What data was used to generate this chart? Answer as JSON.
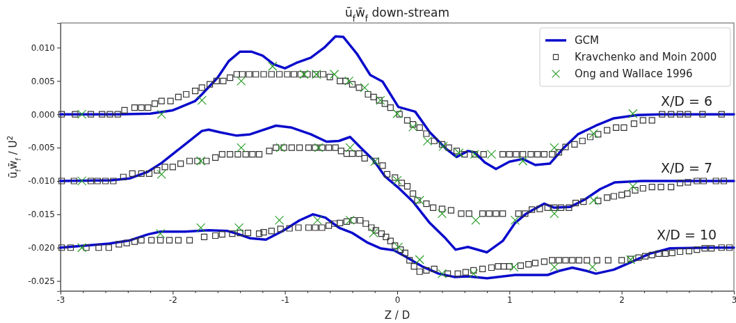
{
  "chart_data": {
    "type": "line",
    "title": "ū$_{f}$w̄$_{f}$ down-stream",
    "xlabel": "Z / D",
    "ylabel": "ū$_{f}$w̄$_{f}$ / U$^{2}$",
    "xlim": [
      -3,
      3
    ],
    "ylim": [
      -0.0265,
      0.0137
    ],
    "xticks": [
      -3,
      {
        "value": -2.8,
        "label": null
      },
      {
        "value": -2.6,
        "label": null
      },
      {
        "value": -2.4,
        "label": null
      },
      {
        "value": -2.2,
        "label": null
      },
      -2,
      {
        "value": -1.8,
        "label": null
      },
      {
        "value": -1.6,
        "label": null
      },
      {
        "value": -1.4,
        "label": null
      },
      {
        "value": -1.2,
        "label": null
      },
      -1,
      {
        "value": -0.8,
        "label": null
      },
      {
        "value": -0.6,
        "label": null
      },
      {
        "value": -0.4,
        "label": null
      },
      {
        "value": -0.2,
        "label": null
      },
      0,
      {
        "value": 0.2,
        "label": null
      },
      {
        "value": 0.4,
        "label": null
      },
      {
        "value": 0.6,
        "label": null
      },
      {
        "value": 0.8,
        "label": null
      },
      1,
      {
        "value": 1.2,
        "label": null
      },
      {
        "value": 1.4,
        "label": null
      },
      {
        "value": 1.6,
        "label": null
      },
      {
        "value": 1.8,
        "label": null
      },
      2,
      {
        "value": 2.2,
        "label": null
      },
      {
        "value": 2.4,
        "label": null
      },
      {
        "value": 2.6,
        "label": null
      },
      {
        "value": 2.8,
        "label": null
      },
      3
    ],
    "yticks": [
      {
        "value": 0.01,
        "label": "0.010"
      },
      {
        "value": 0.005,
        "label": "0.005"
      },
      {
        "value": 0,
        "label": "0.000"
      },
      {
        "value": -0.005,
        "label": "-0.005"
      },
      {
        "value": -0.01,
        "label": "-0.010"
      },
      {
        "value": -0.015,
        "label": "-0.015"
      },
      {
        "value": -0.02,
        "label": "-0.020"
      },
      {
        "value": -0.025,
        "label": "-0.025"
      }
    ],
    "grid": false,
    "legend": "top right",
    "annotations": [
      "X/D = 6",
      "X/D = 7",
      "X/D = 10"
    ],
    "series": [
      {
        "name": "GCM",
        "marker": "none",
        "color": "#0a0acc",
        "x": [
          -3,
          -2.5,
          -2.2,
          -2.0,
          -1.8,
          -1.74,
          -1.6,
          -1.5,
          -1.4,
          -1.3,
          -1.2,
          -1.1,
          -1.0,
          -0.9,
          -0.77,
          -0.65,
          -0.55,
          -0.48,
          -0.36,
          -0.24,
          -0.13,
          0.01,
          0.16,
          0.29,
          0.43,
          0.53,
          0.63,
          0.69,
          0.78,
          0.88,
          1.0,
          1.12,
          1.23,
          1.36,
          1.48,
          1.61,
          1.77,
          1.93,
          2.14,
          2.35,
          3
        ],
        "values": [
          0,
          0,
          0.0001,
          0.0006,
          0.002,
          0.003,
          0.0055,
          0.008,
          0.0094,
          0.0094,
          0.0088,
          0.0075,
          0.0069,
          0.0077,
          0.0085,
          0.01,
          0.0117,
          0.0116,
          0.0091,
          0.0059,
          0.0049,
          0.0011,
          0.0004,
          -0.0027,
          -0.0051,
          -0.0064,
          -0.0055,
          -0.0057,
          -0.0072,
          -0.0082,
          -0.0071,
          -0.0067,
          -0.0076,
          -0.0074,
          -0.0051,
          -0.003,
          -0.0017,
          -0.0006,
          -0.0001,
          0,
          0
        ]
      },
      {
        "marker": "none",
        "color": "#0a0acc",
        "x": [
          -3,
          -2.55,
          -2.38,
          -2.22,
          -2.1,
          -1.89,
          -1.74,
          -1.68,
          -1.58,
          -1.43,
          -1.31,
          -1.08,
          -0.94,
          -0.77,
          -0.63,
          -0.52,
          -0.42,
          -0.32,
          -0.21,
          -0.11,
          0.01,
          0.14,
          0.29,
          0.43,
          0.52,
          0.63,
          0.8,
          0.94,
          1.05,
          1.15,
          1.31,
          1.4,
          1.54,
          1.67,
          1.81,
          1.94,
          2.18,
          3
        ],
        "values": [
          -0.01,
          -0.0099,
          -0.0096,
          -0.0086,
          -0.0073,
          -0.0045,
          -0.0025,
          -0.0023,
          -0.0027,
          -0.0032,
          -0.003,
          -0.0017,
          -0.002,
          -0.003,
          -0.0041,
          -0.004,
          -0.0034,
          -0.0051,
          -0.0069,
          -0.0093,
          -0.011,
          -0.0131,
          -0.0163,
          -0.0186,
          -0.0203,
          -0.0199,
          -0.0207,
          -0.019,
          -0.0163,
          -0.0149,
          -0.0134,
          -0.014,
          -0.0139,
          -0.0128,
          -0.0112,
          -0.0102,
          -0.01,
          -0.01
        ]
      },
      {
        "marker": "none",
        "color": "#0a0acc",
        "x": [
          -3,
          -2.57,
          -2.38,
          -2.22,
          -2.11,
          -1.89,
          -1.68,
          -1.51,
          -1.41,
          -1.31,
          -1.17,
          -1.02,
          -0.87,
          -0.75,
          -0.64,
          -0.52,
          -0.4,
          -0.27,
          -0.15,
          -0.03,
          0.07,
          0.22,
          0.37,
          0.51,
          0.63,
          0.8,
          1.05,
          1.34,
          1.44,
          1.56,
          1.69,
          1.77,
          1.93,
          2.08,
          2.25,
          2.43,
          2.8,
          3
        ],
        "values": [
          -0.02,
          -0.0194,
          -0.0189,
          -0.018,
          -0.0176,
          -0.0176,
          -0.0174,
          -0.0175,
          -0.018,
          -0.0186,
          -0.0188,
          -0.0175,
          -0.0159,
          -0.015,
          -0.0155,
          -0.017,
          -0.0178,
          -0.0192,
          -0.0201,
          -0.0204,
          -0.0213,
          -0.0228,
          -0.0239,
          -0.0244,
          -0.0243,
          -0.0246,
          -0.0241,
          -0.0241,
          -0.0235,
          -0.023,
          -0.0235,
          -0.0239,
          -0.0233,
          -0.0222,
          -0.0209,
          -0.0201,
          -0.02,
          -0.02
        ]
      },
      {
        "name": "Kravchenko and Moin 2000",
        "type": "scatter",
        "marker": "square",
        "color": "#333333",
        "x": [
          -2.99,
          -2.87,
          -2.73,
          -2.63,
          -2.56,
          -2.49,
          -2.43,
          -2.34,
          -2.28,
          -2.22,
          -2.16,
          -2.1,
          -2.02,
          -1.95,
          -1.88,
          -1.8,
          -1.74,
          -1.67,
          -1.61,
          -1.55,
          -1.49,
          -1.43,
          -1.38,
          -1.32,
          -1.26,
          -1.19,
          -1.12,
          -1.05,
          -0.98,
          -0.92,
          -0.86,
          -0.8,
          -0.73,
          -0.66,
          -0.6,
          -0.51,
          -0.46,
          -0.4,
          -0.34,
          -0.26,
          -0.21,
          -0.16,
          -0.11,
          -0.06,
          0.02,
          0.09,
          0.14,
          0.2,
          0.26,
          0.33,
          0.4,
          0.46,
          0.53,
          0.6,
          0.69,
          0.77,
          0.94,
          1.0,
          1.06,
          1.12,
          1.19,
          1.25,
          1.31,
          1.38,
          1.44,
          1.5,
          1.58,
          1.65,
          1.72,
          1.79,
          1.87,
          1.95,
          2.02,
          2.11,
          2.19,
          2.27,
          2.36,
          2.44,
          2.52,
          2.59,
          2.72,
          2.89
        ],
        "values": [
          0,
          0,
          0,
          0,
          0,
          0,
          0.0006,
          0.001,
          0.001,
          0.001,
          0.0016,
          0.002,
          0.002,
          0.0026,
          0.003,
          0.0035,
          0.004,
          0.0045,
          0.005,
          0.005,
          0.0055,
          0.006,
          0.006,
          0.006,
          0.006,
          0.006,
          0.006,
          0.006,
          0.006,
          0.006,
          0.006,
          0.006,
          0.006,
          0.006,
          0.0056,
          0.005,
          0.005,
          0.0045,
          0.004,
          0.003,
          0.0026,
          0.0021,
          0.0016,
          0.001,
          0,
          -0.0009,
          -0.0015,
          -0.002,
          -0.0029,
          -0.004,
          -0.0045,
          -0.005,
          -0.0055,
          -0.006,
          -0.006,
          -0.006,
          -0.006,
          -0.006,
          -0.006,
          -0.006,
          -0.006,
          -0.006,
          -0.006,
          -0.006,
          -0.0057,
          -0.0049,
          -0.0045,
          -0.004,
          -0.0034,
          -0.003,
          -0.0024,
          -0.002,
          -0.002,
          -0.0014,
          -0.0009,
          -0.0009,
          0,
          0,
          0,
          0,
          0,
          0
        ]
      },
      {
        "type": "scatter",
        "marker": "square",
        "color": "#333333",
        "x": [
          -2.99,
          -2.88,
          -2.73,
          -2.67,
          -2.6,
          -2.53,
          -2.44,
          -2.36,
          -2.28,
          -2.21,
          -2.14,
          -2.07,
          -2.0,
          -1.93,
          -1.85,
          -1.78,
          -1.7,
          -1.62,
          -1.56,
          -1.49,
          -1.42,
          -1.35,
          -1.29,
          -1.23,
          -1.14,
          -1.08,
          -1.01,
          -0.94,
          -0.87,
          -0.79,
          -0.73,
          -0.67,
          -0.61,
          -0.55,
          -0.5,
          -0.45,
          -0.4,
          -0.34,
          -0.29,
          -0.19,
          -0.13,
          -0.09,
          -0.02,
          0.04,
          0.09,
          0.14,
          0.18,
          0.26,
          0.32,
          0.4,
          0.48,
          0.57,
          0.64,
          0.76,
          0.82,
          0.88,
          0.94,
          1.08,
          1.14,
          1.2,
          1.27,
          1.34,
          1.4,
          1.46,
          1.53,
          1.59,
          1.66,
          1.79,
          1.87,
          1.93,
          2.0,
          2.05,
          2.12,
          2.19,
          2.27,
          2.35,
          2.44,
          2.52,
          2.59,
          2.67,
          2.73,
          2.84,
          2.91
        ],
        "values": [
          -0.01,
          -0.01,
          -0.01,
          -0.01,
          -0.01,
          -0.01,
          -0.0094,
          -0.0089,
          -0.0089,
          -0.0089,
          -0.0084,
          -0.0079,
          -0.0079,
          -0.0074,
          -0.007,
          -0.007,
          -0.007,
          -0.0065,
          -0.006,
          -0.006,
          -0.006,
          -0.006,
          -0.006,
          -0.006,
          -0.0055,
          -0.005,
          -0.005,
          -0.005,
          -0.005,
          -0.005,
          -0.005,
          -0.005,
          -0.005,
          -0.005,
          -0.0055,
          -0.0059,
          -0.0059,
          -0.0059,
          -0.0066,
          -0.007,
          -0.0077,
          -0.009,
          -0.0095,
          -0.0103,
          -0.0108,
          -0.0119,
          -0.0129,
          -0.0134,
          -0.014,
          -0.0142,
          -0.0144,
          -0.0149,
          -0.0149,
          -0.0149,
          -0.0149,
          -0.0149,
          -0.0149,
          -0.0149,
          -0.0149,
          -0.0143,
          -0.0142,
          -0.014,
          -0.014,
          -0.014,
          -0.014,
          -0.0133,
          -0.0131,
          -0.013,
          -0.0125,
          -0.0123,
          -0.0121,
          -0.0119,
          -0.0114,
          -0.0111,
          -0.0109,
          -0.0109,
          -0.0109,
          -0.0103,
          -0.0102,
          -0.01,
          -0.01,
          -0.01,
          -0.01
        ]
      },
      {
        "type": "scatter",
        "marker": "square",
        "color": "#333333",
        "x": [
          -2.99,
          -2.91,
          -2.77,
          -2.66,
          -2.57,
          -2.48,
          -2.41,
          -2.34,
          -2.28,
          -2.19,
          -2.11,
          -2.03,
          -1.95,
          -1.85,
          -1.72,
          -1.62,
          -1.56,
          -1.47,
          -1.4,
          -1.33,
          -1.23,
          -1.19,
          -1.12,
          -1.04,
          -0.96,
          -0.88,
          -0.79,
          -0.73,
          -0.67,
          -0.61,
          -0.56,
          -0.51,
          -0.45,
          -0.39,
          -0.33,
          -0.28,
          -0.23,
          -0.19,
          -0.14,
          -0.1,
          -0.06,
          -0.02,
          0.03,
          0.07,
          0.11,
          0.15,
          0.2,
          0.26,
          0.33,
          0.45,
          0.54,
          0.61,
          0.68,
          0.76,
          0.84,
          0.9,
          0.95,
          1.0,
          1.1,
          1.17,
          1.23,
          1.31,
          1.38,
          1.44,
          1.5,
          1.56,
          1.62,
          1.69,
          1.78,
          1.88,
          2.0,
          2.08,
          2.15,
          2.21,
          2.27,
          2.33,
          2.39,
          2.45,
          2.52,
          2.6,
          2.67,
          2.74,
          2.8,
          2.89,
          2.96
        ],
        "values": [
          -0.02,
          -0.02,
          -0.02,
          -0.02,
          -0.02,
          -0.0195,
          -0.0193,
          -0.0191,
          -0.0189,
          -0.0189,
          -0.0189,
          -0.0189,
          -0.0189,
          -0.0189,
          -0.0184,
          -0.0182,
          -0.018,
          -0.0179,
          -0.0178,
          -0.0178,
          -0.0179,
          -0.0177,
          -0.0175,
          -0.0172,
          -0.0171,
          -0.017,
          -0.017,
          -0.017,
          -0.017,
          -0.0167,
          -0.0164,
          -0.0163,
          -0.0161,
          -0.0159,
          -0.0159,
          -0.0164,
          -0.017,
          -0.0174,
          -0.0179,
          -0.0184,
          -0.019,
          -0.0197,
          -0.0203,
          -0.0208,
          -0.0219,
          -0.0228,
          -0.0236,
          -0.0234,
          -0.0232,
          -0.0239,
          -0.0239,
          -0.0237,
          -0.0234,
          -0.0232,
          -0.023,
          -0.0228,
          -0.0228,
          -0.0228,
          -0.0227,
          -0.0225,
          -0.0223,
          -0.0221,
          -0.0219,
          -0.0219,
          -0.0219,
          -0.0219,
          -0.0219,
          -0.0219,
          -0.0219,
          -0.0219,
          -0.0219,
          -0.0217,
          -0.0215,
          -0.0213,
          -0.0211,
          -0.0209,
          -0.0209,
          -0.0208,
          -0.0206,
          -0.0205,
          -0.0203,
          -0.0201,
          -0.0201,
          -0.02,
          -0.02
        ]
      },
      {
        "name": "Ong and Wallace 1996",
        "type": "scatter",
        "marker": "cross",
        "color": "#1f9a1f",
        "x": [
          -2.81,
          -2.1,
          -1.74,
          -1.39,
          -1.11,
          -0.83,
          -0.72,
          -0.56,
          -0.43,
          -0.29,
          -0.15,
          0.0,
          0.14,
          0.27,
          0.41,
          0.55,
          0.69,
          0.84,
          1.12,
          1.4,
          1.75,
          2.1
        ],
        "values": [
          0,
          0,
          0.0021,
          0.005,
          0.0072,
          0.006,
          0.006,
          0.006,
          0.005,
          0.004,
          0.0021,
          0.0001,
          -0.0019,
          -0.004,
          -0.0048,
          -0.0058,
          -0.006,
          -0.006,
          -0.007,
          -0.005,
          -0.0029,
          0.0001
        ]
      },
      {
        "type": "scatter",
        "marker": "cross",
        "color": "#1f9a1f",
        "x": [
          -2.81,
          -2.1,
          -1.75,
          -1.39,
          -1.04,
          -0.7,
          -0.42,
          -0.2,
          0.0,
          0.2,
          0.4,
          0.7,
          1.05,
          1.4,
          1.75,
          2.1
        ],
        "values": [
          -0.01,
          -0.009,
          -0.007,
          -0.005,
          -0.005,
          -0.005,
          -0.005,
          -0.0071,
          -0.0099,
          -0.0129,
          -0.0149,
          -0.0159,
          -0.0159,
          -0.0149,
          -0.0129,
          -0.0108
        ]
      },
      {
        "type": "scatter",
        "marker": "cross",
        "color": "#1f9a1f",
        "x": [
          -2.81,
          -2.11,
          -1.75,
          -1.41,
          -1.05,
          -0.71,
          -0.42,
          -0.21,
          0.01,
          0.2,
          0.4,
          0.68,
          1.04,
          1.4,
          1.74,
          2.08
        ],
        "values": [
          -0.02,
          -0.0179,
          -0.017,
          -0.017,
          -0.0159,
          -0.0159,
          -0.0159,
          -0.0178,
          -0.0199,
          -0.0218,
          -0.0239,
          -0.0239,
          -0.0229,
          -0.0229,
          -0.0229,
          -0.0218
        ]
      }
    ]
  }
}
